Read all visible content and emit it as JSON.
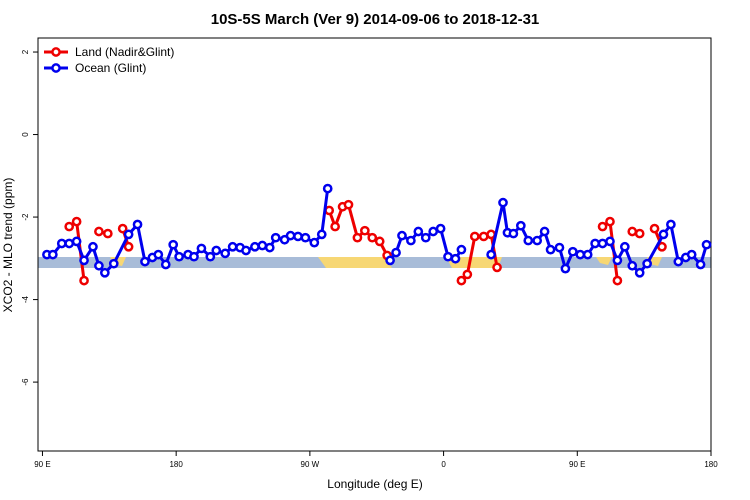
{
  "chart_data": {
    "type": "line",
    "title": "10S-5S March (Ver 9)   2014-09-06 to 2018-12-31",
    "x_label": "Longitude (deg E)",
    "y_label": "XCO2 - MLO trend (ppm)",
    "xlim": [
      87,
      540
    ],
    "ylim": [
      -7.67,
      2.34
    ],
    "xticks": [
      {
        "value": 90,
        "label": "90 E"
      },
      180,
      {
        "value": 270,
        "label": "90 W"
      },
      {
        "value": 360,
        "label": "0"
      },
      {
        "value": 450,
        "label": "90 E"
      },
      {
        "value": 540,
        "label": "180"
      }
    ],
    "yticks": [
      2,
      0,
      -2,
      -4,
      -6
    ],
    "legend": "topleft",
    "series": [
      {
        "name": "Land (Nadir&Glint)",
        "color": "#ee0000",
        "x": [
          108,
          113,
          118,
          null,
          128,
          134,
          null,
          144,
          148,
          null,
          283,
          287,
          292,
          296,
          302,
          307,
          312,
          317,
          322,
          null,
          372,
          376,
          381,
          387,
          392,
          396,
          null,
          467,
          472,
          477,
          null,
          487,
          492,
          null,
          502,
          507
        ],
        "values": [
          -2.23,
          -2.11,
          -3.54,
          null,
          -2.35,
          -2.4,
          null,
          -2.28,
          -2.72,
          null,
          -1.84,
          -2.23,
          -1.75,
          -1.7,
          -2.5,
          -2.33,
          -2.5,
          -2.59,
          -2.93,
          null,
          -3.54,
          -3.39,
          -2.47,
          -2.47,
          -2.42,
          -3.22,
          null,
          -2.23,
          -2.11,
          -3.54,
          null,
          -2.35,
          -2.4,
          null,
          -2.28,
          -2.72
        ]
      },
      {
        "name": "Ocean (Glint)",
        "color": "#0000ee",
        "x": [
          93,
          97,
          103,
          108,
          113,
          118,
          124,
          128,
          132,
          138,
          148,
          154,
          159,
          164,
          168,
          173,
          178,
          182,
          188,
          192,
          197,
          203,
          207,
          213,
          218,
          223,
          227,
          233,
          238,
          243,
          247,
          253,
          257,
          262,
          267,
          273,
          278,
          282,
          null,
          324,
          328,
          332,
          338,
          343,
          348,
          353,
          358,
          363,
          368,
          372,
          null,
          392,
          400,
          403,
          407,
          412,
          417,
          423,
          428,
          432,
          438,
          442,
          447,
          452,
          457,
          462,
          467,
          472,
          477,
          482,
          487,
          492,
          497,
          508,
          513,
          518,
          523,
          527,
          533,
          537
        ],
        "values": [
          -2.91,
          -2.91,
          -2.64,
          -2.64,
          -2.59,
          -3.05,
          -2.72,
          -3.18,
          -3.35,
          -3.13,
          -2.42,
          -2.18,
          -3.08,
          -2.98,
          -2.91,
          -3.15,
          -2.67,
          -2.96,
          -2.91,
          -2.96,
          -2.76,
          -2.96,
          -2.81,
          -2.88,
          -2.72,
          -2.74,
          -2.81,
          -2.72,
          -2.69,
          -2.74,
          -2.5,
          -2.55,
          -2.45,
          -2.47,
          -2.5,
          -2.62,
          -2.42,
          -1.31,
          null,
          -3.05,
          -2.86,
          -2.45,
          -2.57,
          -2.35,
          -2.5,
          -2.35,
          -2.28,
          -2.96,
          -3.01,
          -2.79,
          null,
          -2.91,
          -1.65,
          -2.38,
          -2.4,
          -2.21,
          -2.57,
          -2.57,
          -2.35,
          -2.79,
          -2.74,
          -3.25,
          -2.84,
          -2.91,
          -2.91,
          -2.64,
          -2.64,
          -2.59,
          -3.05,
          -2.72,
          -3.18,
          -3.35,
          -3.13,
          -2.42,
          -2.18,
          -3.08,
          -2.98,
          -2.91,
          -3.15,
          -2.67
        ]
      }
    ]
  }
}
